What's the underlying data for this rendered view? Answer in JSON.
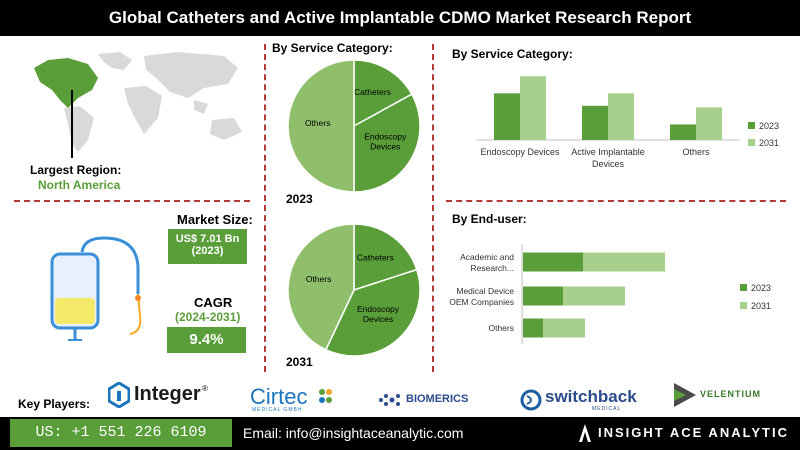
{
  "header": {
    "title": "Global Catheters and Active Implantable CDMO Market Research Report"
  },
  "region": {
    "label": "Largest Region:",
    "value": "North America"
  },
  "market_size": {
    "label": "Market Size:",
    "value": "US$ 7.01 Bn",
    "year": "(2023)"
  },
  "cagr": {
    "label": "CAGR",
    "period": "(2024-2031)",
    "value": "9.4%"
  },
  "colors": {
    "dark_green": "#5a9e3a",
    "light_green": "#a8d08d",
    "dash_red": "#b03a3a"
  },
  "key_players": {
    "label": "Key Players:",
    "logos": [
      {
        "name": "Integer",
        "mark": "®"
      },
      {
        "name": "Cirtec",
        "sub": "MEDICAL GMBH"
      },
      {
        "name": "BIOMERICS"
      },
      {
        "name": "switchback",
        "sub": "MEDICAL"
      },
      {
        "name": "VELENTIUM"
      }
    ]
  },
  "footer": {
    "phone": "US: +1 551 226 6109",
    "email": "Email: info@insightaceanalytic.com",
    "brand": "INSIGHT ACE ANALYTIC"
  },
  "chart_data": [
    {
      "type": "pie",
      "title": "By Service Category:",
      "year": "2023",
      "slices": [
        {
          "label": "Catheters",
          "value": 17,
          "color": "#5a9e3a"
        },
        {
          "label": "Endoscopy Devices",
          "value": 33,
          "color": "#5a9e3a"
        },
        {
          "label": "Others",
          "value": 50,
          "color": "#8fbf6a"
        }
      ]
    },
    {
      "type": "pie",
      "year": "2031",
      "slices": [
        {
          "label": "Catheters",
          "value": 20,
          "color": "#5a9e3a"
        },
        {
          "label": "Endoscopy Devices",
          "value": 37,
          "color": "#5a9e3a"
        },
        {
          "label": "Others",
          "value": 43,
          "color": "#8fbf6a"
        }
      ]
    },
    {
      "type": "bar",
      "title": "By  Service Category:",
      "categories": [
        "Endoscopy Devices",
        "Active Implantable Devices",
        "Others"
      ],
      "series": [
        {
          "name": "2023",
          "values": [
            3.0,
            2.2,
            1.0
          ],
          "color": "#5a9e3a"
        },
        {
          "name": "2031",
          "values": [
            4.1,
            3.0,
            2.1
          ],
          "color": "#a8d08d"
        }
      ],
      "legend": "right"
    },
    {
      "type": "bar",
      "orientation": "horizontal",
      "title": "By End-user:",
      "categories": [
        "Academic and Research...",
        "Medical Device OEM Companies",
        "Others"
      ],
      "series": [
        {
          "name": "2023",
          "values": [
            3.0,
            2.0,
            1.0
          ],
          "color": "#5a9e3a"
        },
        {
          "name": "2031",
          "values": [
            4.1,
            3.1,
            2.1
          ],
          "color": "#a8d08d"
        }
      ],
      "legend": "right"
    }
  ]
}
